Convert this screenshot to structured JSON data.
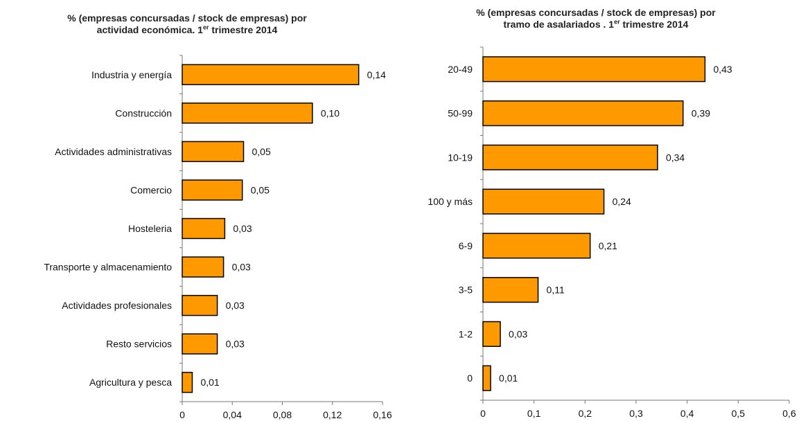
{
  "chart_data": [
    {
      "type": "bar",
      "orientation": "horizontal",
      "title_line1": "% (empresas concursadas / stock de empresas) por",
      "title_line2_pre": "actividad económica. 1",
      "title_line2_sup": "er",
      "title_line2_post": " trimestre 2014",
      "categories": [
        "Industria y energía",
        "Construcción",
        "Actividades administrativas",
        "Comercio",
        "Hosteleria",
        "Transporte y almacenamiento",
        "Actividades profesionales",
        "Resto servicios",
        "Agricultura y pesca"
      ],
      "values": [
        0.141,
        0.104,
        0.049,
        0.048,
        0.034,
        0.033,
        0.028,
        0.028,
        0.008
      ],
      "value_labels": [
        "0,14",
        "0,10",
        "0,05",
        "0,05",
        "0,03",
        "0,03",
        "0,03",
        "0,03",
        "0,01"
      ],
      "xlim": [
        0,
        0.16
      ],
      "xticks": [
        0,
        0.04,
        0.08,
        0.12,
        0.16
      ],
      "xtick_labels": [
        "0",
        "0,04",
        "0,08",
        "0,12",
        "0,16"
      ],
      "grid": false,
      "bar_color": "#ff9900",
      "bar_edge_color": "#000000"
    },
    {
      "type": "bar",
      "orientation": "horizontal",
      "title_line1": "% (empresas concursadas / stock de empresas) por",
      "title_line2_pre": "tramo de asalariados . 1",
      "title_line2_sup": "er",
      "title_line2_post": " trimestre 2014",
      "categories": [
        "20-49",
        "50-99",
        "10-19",
        "100 y más",
        "6-9",
        "3-5",
        "1-2",
        "0"
      ],
      "values": [
        0.435,
        0.392,
        0.342,
        0.237,
        0.21,
        0.108,
        0.034,
        0.015
      ],
      "value_labels": [
        "0,43",
        "0,39",
        "0,34",
        "0,24",
        "0,21",
        "0,11",
        "0,03",
        "0,01"
      ],
      "xlim": [
        0,
        0.6
      ],
      "xticks": [
        0,
        0.1,
        0.2,
        0.3,
        0.4,
        0.5,
        0.6
      ],
      "xtick_labels": [
        "0",
        "0,1",
        "0,2",
        "0,3",
        "0,4",
        "0,5",
        "0,6"
      ],
      "grid": false,
      "bar_color": "#ff9900",
      "bar_edge_color": "#000000"
    }
  ]
}
